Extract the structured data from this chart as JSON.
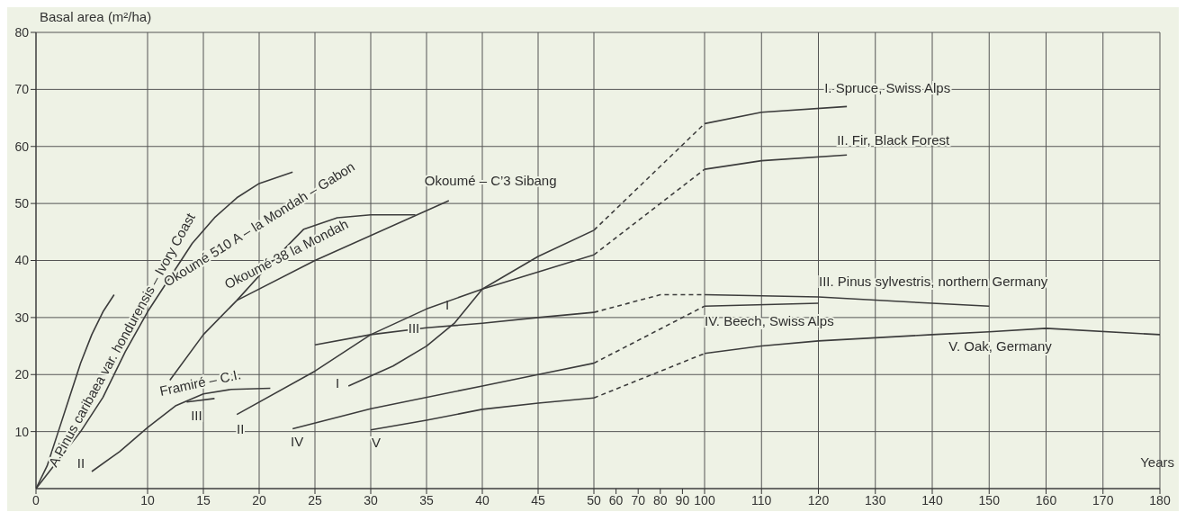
{
  "chart_data": [
    {
      "type": "line",
      "ylabel": "Basal area (m²/ha)",
      "xlim": [
        0,
        50
      ],
      "xticks": [
        0,
        10,
        15,
        20,
        25,
        30,
        35,
        40,
        45,
        50
      ],
      "ylim": [
        0,
        80
      ],
      "yticks": [
        10,
        20,
        30,
        40,
        50,
        60,
        70,
        80
      ],
      "grid": true,
      "marker": "none",
      "line_style": "solid",
      "series": [
        {
          "name": "A Pinus caribaea var. hondurensis – Ivory Coast",
          "color": "#3c3c3c",
          "x": [
            0,
            1,
            2,
            3,
            4,
            5,
            6,
            7
          ],
          "values": [
            0,
            4,
            10,
            16,
            22,
            27,
            31,
            34
          ]
        },
        {
          "name": "Okoumé 510 A – la Mondah – Gabon",
          "color": "#3c3c3c",
          "x": [
            0,
            2,
            4,
            6,
            8,
            10,
            12,
            14,
            16,
            18,
            20,
            23
          ],
          "values": [
            0,
            5,
            10,
            16,
            24,
            31,
            37,
            43,
            47.5,
            51,
            53.5,
            55.5
          ]
        },
        {
          "name": "Okoumé 38 la Mondah",
          "color": "#3c3c3c",
          "x": [
            12,
            15,
            18,
            21,
            24,
            27,
            30,
            34
          ],
          "values": [
            19,
            27,
            33,
            39.5,
            45.5,
            47.5,
            48,
            48
          ]
        },
        {
          "name": "Okoumé – C’3 Sibang",
          "color": "#3c3c3c",
          "x": [
            18,
            25,
            37
          ],
          "values": [
            33,
            40,
            50.5
          ]
        },
        {
          "name": "II",
          "color": "#3c3c3c",
          "x": [
            5,
            7.5,
            10,
            12.5,
            15,
            17.5,
            21
          ],
          "values": [
            3,
            6.5,
            10.7,
            14.5,
            16.6,
            17.4,
            17.6
          ]
        },
        {
          "name": "III",
          "color": "#3c3c3c",
          "x": [
            13.5,
            16
          ],
          "values": [
            15.2,
            15.8
          ]
        },
        {
          "name": "I",
          "color": "#3c3c3c",
          "x": [
            28,
            32,
            35,
            37.5,
            40,
            45,
            50
          ],
          "values": [
            18,
            21.5,
            25,
            29,
            35,
            40.7,
            45.3
          ]
        },
        {
          "name": "II",
          "color": "#3c3c3c",
          "x": [
            18,
            25,
            30,
            35,
            40,
            45,
            50
          ],
          "values": [
            13,
            20.6,
            27,
            31.5,
            35,
            38,
            41
          ]
        },
        {
          "name": "III",
          "color": "#3c3c3c",
          "x": [
            25,
            30,
            35,
            40,
            45,
            50
          ],
          "values": [
            25.2,
            27,
            28.2,
            29,
            30,
            30.9
          ]
        },
        {
          "name": "IV",
          "color": "#3c3c3c",
          "x": [
            23,
            30,
            40,
            45,
            50
          ],
          "values": [
            10.5,
            14,
            18,
            20,
            22
          ]
        },
        {
          "name": "V",
          "color": "#3c3c3c",
          "x": [
            30,
            35,
            40,
            45,
            50
          ],
          "values": [
            10.3,
            12,
            13.9,
            15,
            15.9
          ]
        }
      ],
      "annotations": [
        "Framiré – C.I.",
        "I"
      ]
    },
    {
      "type": "line",
      "xlim": [
        50,
        100
      ],
      "xticks": [
        60,
        70,
        80,
        90
      ],
      "ylim": [
        0,
        80
      ],
      "yticks": [
        10,
        20,
        30,
        40,
        50,
        60,
        70,
        80
      ],
      "grid": "y",
      "tick_labels": "x",
      "marker": "none",
      "line_style": "dashed",
      "series": [
        {
          "color": "#3c3c3c",
          "x": [
            50,
            100
          ],
          "values": [
            45.3,
            64
          ]
        },
        {
          "color": "#3c3c3c",
          "x": [
            50,
            100
          ],
          "values": [
            41,
            56
          ]
        },
        {
          "color": "#3c3c3c",
          "x": [
            50,
            80,
            100
          ],
          "values": [
            30.9,
            34,
            34
          ]
        },
        {
          "color": "#3c3c3c",
          "x": [
            50,
            100
          ],
          "values": [
            22,
            32
          ]
        },
        {
          "color": "#3c3c3c",
          "x": [
            50,
            100
          ],
          "values": [
            15.9,
            23.7
          ]
        }
      ]
    },
    {
      "type": "line",
      "xlabel": "Years",
      "xlim": [
        100,
        180
      ],
      "xticks": [
        100,
        110,
        120,
        130,
        140,
        150,
        160,
        170,
        180
      ],
      "ylim": [
        0,
        80
      ],
      "yticks": [
        10,
        20,
        30,
        40,
        50,
        60,
        70,
        80
      ],
      "grid": true,
      "tick_labels": "x",
      "marker": "none",
      "line_style": "solid",
      "series": [
        {
          "name": "I. Spruce, Swiss Alps",
          "color": "#3c3c3c",
          "x": [
            100,
            110,
            125
          ],
          "values": [
            64,
            66,
            67
          ]
        },
        {
          "name": "II. Fir, Black Forest",
          "color": "#3c3c3c",
          "x": [
            100,
            110,
            125
          ],
          "values": [
            56,
            57.5,
            58.5
          ]
        },
        {
          "name": "III. Pinus sylvestris, northern Germany",
          "color": "#3c3c3c",
          "x": [
            100,
            120,
            140,
            150
          ],
          "values": [
            34,
            33.6,
            32.5,
            32
          ]
        },
        {
          "name": "IV. Beech, Swiss Alps",
          "color": "#3c3c3c",
          "x": [
            100,
            120
          ],
          "values": [
            32,
            32.5
          ]
        },
        {
          "name": "V. Oak, Germany",
          "color": "#3c3c3c",
          "x": [
            100,
            110,
            120,
            140,
            150,
            160,
            180
          ],
          "values": [
            23.7,
            25,
            25.9,
            27,
            27.5,
            28.1,
            27
          ]
        }
      ]
    }
  ]
}
